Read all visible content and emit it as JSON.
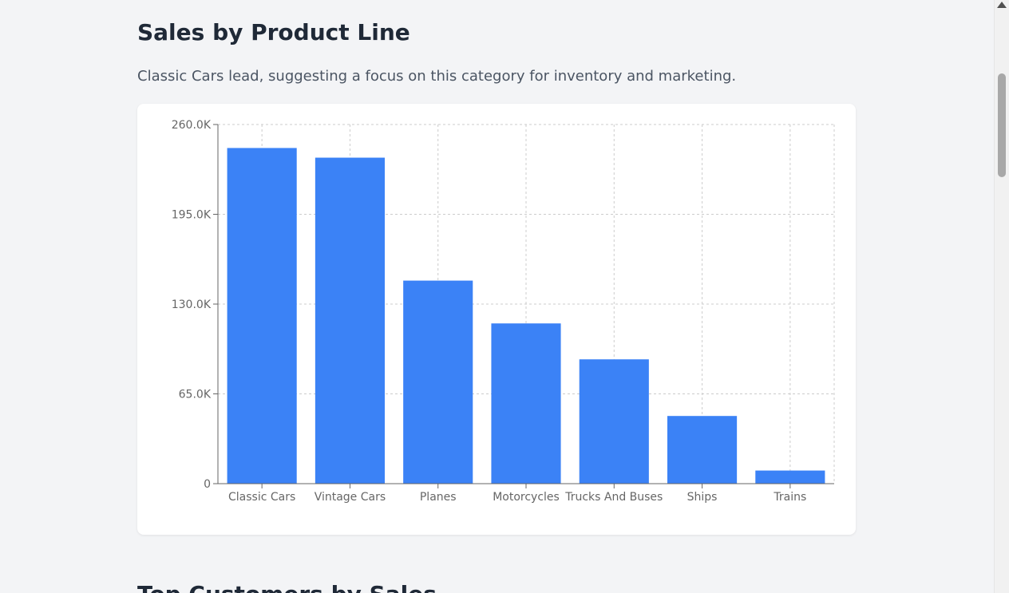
{
  "section": {
    "title": "Sales by Product Line",
    "description": "Classic Cars lead, suggesting a focus on this category for inventory and marketing."
  },
  "next_section": {
    "title": "Top Customers by Sales"
  },
  "colors": {
    "bar": "#3b82f6",
    "grid": "#cccccc",
    "axis": "#666666",
    "tick_text": "#666666"
  },
  "chart_data": {
    "type": "bar",
    "title": "",
    "xlabel": "",
    "ylabel": "",
    "categories": [
      "Classic Cars",
      "Vintage Cars",
      "Planes",
      "Motorcycles",
      "Trucks And Buses",
      "Ships",
      "Trains"
    ],
    "values": [
      243000,
      236000,
      147000,
      116000,
      90000,
      49000,
      9500
    ],
    "ylim": [
      0,
      260000
    ],
    "yticks": [
      0,
      65000,
      130000,
      195000,
      260000
    ],
    "ytick_labels": [
      "0",
      "65.0K",
      "130.0K",
      "195.0K",
      "260.0K"
    ],
    "grid": true,
    "legend": "none"
  }
}
